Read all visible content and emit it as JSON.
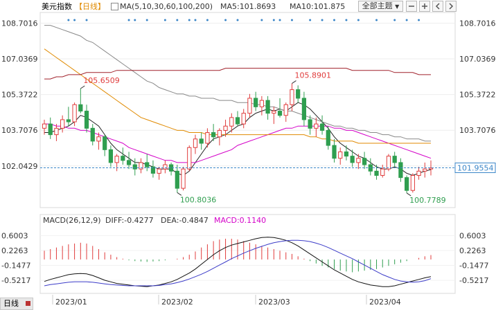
{
  "header": {
    "instrument": "美元指数",
    "period_label": "【日线】",
    "ma_label": "MA(5,10,30,60,100,200)",
    "ma5_label": "MA5:101.8693",
    "ma10_label": "MA10:101.875",
    "theme_button": "全部主题",
    "theme_arrow": "▼"
  },
  "macd_header": {
    "params": "MACD(26,12,9)",
    "diff": "DIFF:-0.4277",
    "dea": "DEA:-0.4847",
    "macd": "MACD:0.1140"
  },
  "footer": {
    "tab_label": "日线"
  },
  "colors": {
    "up": "#e03c3c",
    "down": "#2f9e4f",
    "ma5": "#222222",
    "ma30": "#d400c8",
    "ma60": "#e08a00",
    "ma100": "#888888",
    "ma200": "#a0202a",
    "macd_up": "#e03c3c",
    "macd_down": "#2f9e4f"
  },
  "chart_data": {
    "type": "candlestick",
    "price_axis": {
      "ticks": [
        "108.7016",
        "107.0369",
        "105.3722",
        "103.7076",
        "102.0429"
      ],
      "range": [
        100.1,
        109.2
      ]
    },
    "last_price": "101.9554",
    "annotations": {
      "high1": "105.6509",
      "high2": "105.8901",
      "low1": "100.8036",
      "low2": "100.7789"
    },
    "x_labels": [
      "2023/01",
      "2023/02",
      "2023/03",
      "2023/04"
    ],
    "candles": [
      [
        103.8,
        104.2,
        103.5,
        104.0
      ],
      [
        104.0,
        104.3,
        103.3,
        103.5
      ],
      [
        103.5,
        104.0,
        103.2,
        103.8
      ],
      [
        103.8,
        104.4,
        103.6,
        104.2
      ],
      [
        104.2,
        104.8,
        103.9,
        104.1
      ],
      [
        104.1,
        105.0,
        103.9,
        104.9
      ],
      [
        104.9,
        105.65,
        104.5,
        104.6
      ],
      [
        104.6,
        104.9,
        103.6,
        103.8
      ],
      [
        103.8,
        104.0,
        103.0,
        103.2
      ],
      [
        103.2,
        103.6,
        102.8,
        103.4
      ],
      [
        103.4,
        103.5,
        102.5,
        102.8
      ],
      [
        102.8,
        103.0,
        102.0,
        102.2
      ],
      [
        102.2,
        102.6,
        101.8,
        102.5
      ],
      [
        102.5,
        102.9,
        102.1,
        102.3
      ],
      [
        102.3,
        102.7,
        101.9,
        102.1
      ],
      [
        102.1,
        102.4,
        101.6,
        101.9
      ],
      [
        101.9,
        102.4,
        101.7,
        102.2
      ],
      [
        102.2,
        102.6,
        101.8,
        102.0
      ],
      [
        102.0,
        102.3,
        101.5,
        101.7
      ],
      [
        101.7,
        102.0,
        101.4,
        101.9
      ],
      [
        101.9,
        102.3,
        101.7,
        102.1
      ],
      [
        102.1,
        102.2,
        101.6,
        101.8
      ],
      [
        101.8,
        102.1,
        100.8,
        101.0
      ],
      [
        101.0,
        102.0,
        100.9,
        101.9
      ],
      [
        101.9,
        103.0,
        101.8,
        102.9
      ],
      [
        102.9,
        103.5,
        102.6,
        103.3
      ],
      [
        103.3,
        103.6,
        102.8,
        103.1
      ],
      [
        103.1,
        103.8,
        102.9,
        103.6
      ],
      [
        103.6,
        104.0,
        103.2,
        103.4
      ],
      [
        103.4,
        103.8,
        103.0,
        103.7
      ],
      [
        103.7,
        104.2,
        103.4,
        103.9
      ],
      [
        103.9,
        104.5,
        103.6,
        104.3
      ],
      [
        104.3,
        104.6,
        103.9,
        104.0
      ],
      [
        104.0,
        104.7,
        103.8,
        104.5
      ],
      [
        104.5,
        105.4,
        104.3,
        105.2
      ],
      [
        105.2,
        105.5,
        104.6,
        104.8
      ],
      [
        104.8,
        105.3,
        104.4,
        105.1
      ],
      [
        105.1,
        105.3,
        104.2,
        104.5
      ],
      [
        104.5,
        104.8,
        104.0,
        104.6
      ],
      [
        104.6,
        105.2,
        104.3,
        104.4
      ],
      [
        104.4,
        105.0,
        104.1,
        104.9
      ],
      [
        104.9,
        105.89,
        104.6,
        105.6
      ],
      [
        105.6,
        105.8,
        105.0,
        105.2
      ],
      [
        105.2,
        105.5,
        103.9,
        104.2
      ],
      [
        104.2,
        104.4,
        103.5,
        103.8
      ],
      [
        103.8,
        104.3,
        103.4,
        104.0
      ],
      [
        104.0,
        104.4,
        103.5,
        103.7
      ],
      [
        103.7,
        103.9,
        102.8,
        103.0
      ],
      [
        103.0,
        103.3,
        102.2,
        102.4
      ],
      [
        102.4,
        102.9,
        102.1,
        102.7
      ],
      [
        102.7,
        103.0,
        102.3,
        102.5
      ],
      [
        102.5,
        102.8,
        102.0,
        102.2
      ],
      [
        102.2,
        102.6,
        101.9,
        102.4
      ],
      [
        102.4,
        102.7,
        101.9,
        102.1
      ],
      [
        102.1,
        102.4,
        101.6,
        101.8
      ],
      [
        101.8,
        102.1,
        101.4,
        101.6
      ],
      [
        101.6,
        102.1,
        101.5,
        101.9
      ],
      [
        101.9,
        102.6,
        101.8,
        102.5
      ],
      [
        102.5,
        102.7,
        102.0,
        102.2
      ],
      [
        102.2,
        102.4,
        101.3,
        101.5
      ],
      [
        101.5,
        101.6,
        100.78,
        100.9
      ],
      [
        100.9,
        101.7,
        100.8,
        101.6
      ],
      [
        101.6,
        102.0,
        101.4,
        101.8
      ],
      [
        101.8,
        102.2,
        101.5,
        101.9
      ],
      [
        101.9,
        102.3,
        101.6,
        101.95
      ]
    ],
    "ma_lines": {
      "ma5": [
        103.6,
        103.6,
        103.7,
        103.8,
        103.9,
        104.1,
        104.4,
        104.3,
        104.1,
        103.9,
        103.5,
        103.1,
        102.8,
        102.6,
        102.4,
        102.2,
        102.2,
        102.1,
        102.0,
        101.9,
        101.9,
        101.9,
        101.7,
        101.6,
        101.8,
        102.2,
        102.6,
        103.0,
        103.3,
        103.4,
        103.5,
        103.7,
        103.9,
        104.0,
        104.3,
        104.5,
        104.6,
        104.7,
        104.6,
        104.7,
        104.6,
        104.8,
        105.0,
        104.9,
        104.7,
        104.4,
        104.1,
        103.8,
        103.4,
        103.1,
        102.9,
        102.7,
        102.5,
        102.4,
        102.2,
        102.0,
        101.9,
        101.9,
        102.0,
        101.9,
        101.7,
        101.6,
        101.7,
        101.8,
        101.87
      ],
      "ma30": [
        104.0,
        104.0,
        103.9,
        103.9,
        103.8,
        103.8,
        103.7,
        103.7,
        103.6,
        103.5,
        103.4,
        103.3,
        103.2,
        103.1,
        102.9,
        102.8,
        102.7,
        102.6,
        102.5,
        102.4,
        102.3,
        102.3,
        102.2,
        102.2,
        102.2,
        102.2,
        102.3,
        102.4,
        102.5,
        102.6,
        102.7,
        102.8,
        103.0,
        103.1,
        103.2,
        103.3,
        103.4,
        103.5,
        103.6,
        103.7,
        103.8,
        103.8,
        103.9,
        103.9,
        103.9,
        103.9,
        103.9,
        103.9,
        103.8,
        103.8,
        103.7,
        103.7,
        103.6,
        103.5,
        103.4,
        103.3,
        103.2,
        103.1,
        103.0,
        102.9,
        102.8,
        102.7,
        102.6,
        102.5,
        102.4
      ],
      "ma60": [
        107.5,
        107.3,
        107.1,
        106.9,
        106.7,
        106.5,
        106.3,
        106.1,
        105.9,
        105.7,
        105.5,
        105.3,
        105.1,
        104.9,
        104.7,
        104.5,
        104.3,
        104.2,
        104.1,
        104.0,
        103.9,
        103.8,
        103.7,
        103.7,
        103.6,
        103.6,
        103.6,
        103.5,
        103.5,
        103.5,
        103.5,
        103.5,
        103.5,
        103.5,
        103.5,
        103.5,
        103.5,
        103.5,
        103.5,
        103.5,
        103.5,
        103.5,
        103.5,
        103.5,
        103.4,
        103.4,
        103.3,
        103.3,
        103.2,
        103.2,
        103.2,
        103.2,
        103.1,
        103.1,
        103.1,
        103.1,
        103.1,
        103.1,
        103.1,
        103.1,
        103.1,
        103.1,
        103.1,
        103.1,
        103.1
      ],
      "ma100": [
        108.6,
        108.6,
        108.5,
        108.4,
        108.3,
        108.2,
        108.1,
        107.9,
        107.8,
        107.6,
        107.4,
        107.2,
        107.0,
        106.8,
        106.6,
        106.4,
        106.2,
        106.0,
        105.9,
        105.7,
        105.6,
        105.5,
        105.4,
        105.4,
        105.3,
        105.3,
        105.2,
        105.2,
        105.2,
        105.1,
        105.1,
        105.1,
        105.0,
        105.0,
        105.0,
        104.9,
        104.9,
        104.8,
        104.8,
        104.7,
        104.6,
        104.6,
        104.5,
        104.4,
        104.3,
        104.2,
        104.1,
        104.0,
        103.9,
        103.9,
        103.8,
        103.8,
        103.7,
        103.7,
        103.6,
        103.6,
        103.5,
        103.5,
        103.4,
        103.4,
        103.3,
        103.3,
        103.3,
        103.2,
        103.2
      ],
      "ma200": [
        106.1,
        106.1,
        106.2,
        106.2,
        106.3,
        106.3,
        106.3,
        106.4,
        106.4,
        106.4,
        106.4,
        106.4,
        106.5,
        106.5,
        106.5,
        106.5,
        106.5,
        106.5,
        106.5,
        106.5,
        106.5,
        106.5,
        106.5,
        106.5,
        106.5,
        106.5,
        106.5,
        106.5,
        106.5,
        106.5,
        106.6,
        106.6,
        106.6,
        106.6,
        106.6,
        106.6,
        106.6,
        106.6,
        106.6,
        106.6,
        106.6,
        106.6,
        106.6,
        106.6,
        106.6,
        106.6,
        106.6,
        106.6,
        106.6,
        106.6,
        106.6,
        106.5,
        106.5,
        106.5,
        106.5,
        106.5,
        106.5,
        106.5,
        106.4,
        106.4,
        106.4,
        106.4,
        106.3,
        106.3,
        106.3
      ]
    },
    "macd_axis": {
      "ticks": [
        "0.6003",
        "0.2263",
        "-0.1477",
        "-0.5217"
      ],
      "range": [
        -0.85,
        0.85
      ]
    },
    "macd_hist": [
      0.22,
      0.26,
      0.3,
      0.34,
      0.38,
      0.4,
      0.42,
      0.4,
      0.34,
      0.26,
      0.18,
      0.12,
      0.06,
      0.02,
      -0.02,
      -0.04,
      -0.05,
      -0.06,
      -0.05,
      -0.04,
      -0.02,
      0.0,
      0.02,
      0.06,
      0.12,
      0.2,
      0.3,
      0.38,
      0.46,
      0.5,
      0.52,
      0.52,
      0.5,
      0.46,
      0.42,
      0.38,
      0.34,
      0.3,
      0.26,
      0.22,
      0.18,
      0.14,
      0.08,
      0.02,
      -0.04,
      -0.1,
      -0.16,
      -0.2,
      -0.24,
      -0.28,
      -0.3,
      -0.32,
      -0.3,
      -0.28,
      -0.26,
      -0.24,
      -0.2,
      -0.16,
      -0.12,
      -0.08,
      -0.04,
      0.0,
      0.04,
      0.08,
      0.11
    ],
    "diff": [
      -0.55,
      -0.5,
      -0.46,
      -0.42,
      -0.38,
      -0.36,
      -0.35,
      -0.36,
      -0.4,
      -0.46,
      -0.52,
      -0.56,
      -0.6,
      -0.62,
      -0.64,
      -0.66,
      -0.67,
      -0.68,
      -0.66,
      -0.64,
      -0.6,
      -0.56,
      -0.5,
      -0.42,
      -0.34,
      -0.24,
      -0.12,
      0.0,
      0.12,
      0.22,
      0.3,
      0.36,
      0.4,
      0.44,
      0.48,
      0.52,
      0.55,
      0.56,
      0.55,
      0.52,
      0.48,
      0.42,
      0.34,
      0.24,
      0.14,
      0.04,
      -0.06,
      -0.16,
      -0.26,
      -0.34,
      -0.42,
      -0.5,
      -0.56,
      -0.6,
      -0.64,
      -0.66,
      -0.68,
      -0.68,
      -0.66,
      -0.62,
      -0.58,
      -0.54,
      -0.5,
      -0.46,
      -0.43
    ],
    "dea": [
      -0.66,
      -0.63,
      -0.61,
      -0.59,
      -0.57,
      -0.56,
      -0.56,
      -0.56,
      -0.57,
      -0.59,
      -0.61,
      -0.63,
      -0.64,
      -0.65,
      -0.66,
      -0.66,
      -0.66,
      -0.66,
      -0.66,
      -0.65,
      -0.63,
      -0.61,
      -0.58,
      -0.54,
      -0.49,
      -0.43,
      -0.37,
      -0.3,
      -0.22,
      -0.14,
      -0.06,
      0.02,
      0.09,
      0.16,
      0.22,
      0.28,
      0.33,
      0.38,
      0.42,
      0.45,
      0.47,
      0.48,
      0.48,
      0.47,
      0.45,
      0.41,
      0.36,
      0.3,
      0.23,
      0.16,
      0.09,
      0.02,
      -0.06,
      -0.14,
      -0.22,
      -0.3,
      -0.38,
      -0.44,
      -0.5,
      -0.54,
      -0.56,
      -0.57,
      -0.56,
      -0.53,
      -0.48
    ]
  }
}
